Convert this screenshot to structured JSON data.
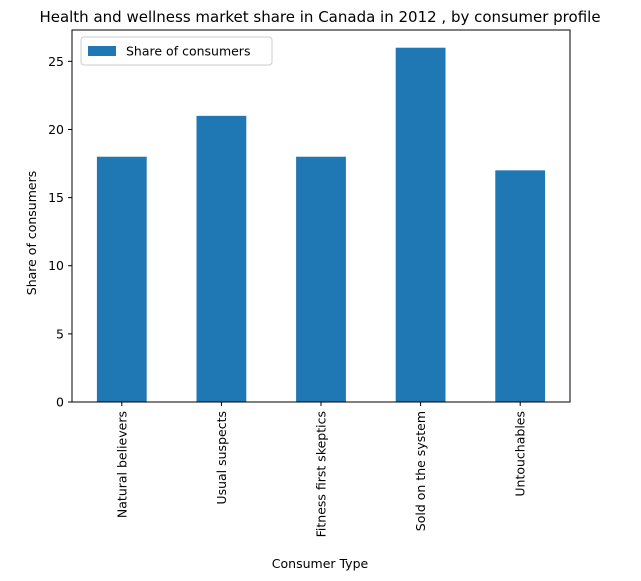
{
  "chart_data": {
    "type": "bar",
    "title": "Health and wellness market share in Canada in 2012 , by consumer profile",
    "xlabel": "Consumer Type",
    "ylabel": "Share of consumers",
    "categories": [
      "Natural believers",
      "Usual suspects",
      "Fitness first skeptics",
      "Sold on the system",
      "Untouchables"
    ],
    "series": [
      {
        "name": "Share of consumers",
        "values": [
          18,
          21,
          18,
          26,
          17
        ],
        "color": "#1f77b4"
      }
    ],
    "ylim": [
      0,
      27.3
    ],
    "yticks": [
      0,
      5,
      10,
      15,
      20,
      25
    ],
    "ytick_labels": [
      "0",
      "5",
      "10",
      "15",
      "20",
      "25"
    ],
    "grid": false,
    "legend_position": "upper-left"
  }
}
